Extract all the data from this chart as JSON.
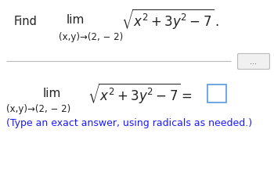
{
  "bg_color": "#ffffff",
  "text_color": "#222222",
  "hint_color": "#1a1aff",
  "top_find": "Find",
  "top_lim": "lim",
  "top_sub": "(x,y)→(2, − 2)",
  "top_expr": "$\\sqrt{x^2 + 3y^2 - 7}\\,.$",
  "bottom_lim": "lim",
  "bottom_sub": "(x,y)→(2, − 2)",
  "bottom_expr": "$\\sqrt{x^2 + 3y^2 - 7} = $",
  "hint": "(Type an exact answer, using radicals as needed.)",
  "fs_find": 10.5,
  "fs_lim": 11,
  "fs_sub": 8.5,
  "fs_expr": 12,
  "fs_hint": 9
}
